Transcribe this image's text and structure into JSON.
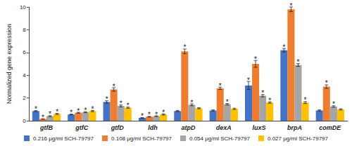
{
  "chart_data": {
    "type": "bar",
    "y_label": "Normalized gene expression",
    "categories": [
      "gtfB",
      "gtfC",
      "gtfD",
      "ldh",
      "atpD",
      "dexA",
      "luxS",
      "brpA",
      "comDE"
    ],
    "series": [
      {
        "name": "0.216 μg/ml SCH-79797",
        "color": "#4472c4",
        "values": [
          0.85,
          0.55,
          1.65,
          0.25,
          0.85,
          0.9,
          3.1,
          6.2,
          0.9
        ],
        "errors": [
          0.05,
          0.04,
          0.1,
          0.03,
          0.05,
          0.05,
          0.35,
          0.15,
          0.05
        ],
        "significance": [
          "*",
          "*",
          "*",
          "*",
          null,
          null,
          "*",
          "*",
          null
        ]
      },
      {
        "name": "0.108 μg/ml SCH-79797",
        "color": "#ed7d31",
        "values": [
          0.15,
          0.7,
          2.75,
          0.35,
          6.1,
          2.85,
          5.0,
          9.8,
          3.0
        ],
        "errors": [
          0.02,
          0.04,
          0.15,
          0.03,
          0.2,
          0.1,
          0.3,
          0.2,
          0.15
        ],
        "significance": [
          "*",
          "*",
          "*",
          "*",
          "*",
          "*",
          "*",
          "*",
          "*"
        ]
      },
      {
        "name": "0.054 μg/ml SCH-79797",
        "color": "#a5a5a5",
        "values": [
          0.4,
          0.75,
          1.3,
          0.4,
          1.4,
          1.45,
          2.2,
          4.9,
          1.25
        ],
        "errors": [
          0.04,
          0.04,
          0.08,
          0.03,
          0.08,
          0.06,
          0.1,
          0.12,
          0.06
        ],
        "significance": [
          "*",
          "*",
          "*",
          "*",
          "*",
          "*",
          "*",
          "*",
          "*"
        ]
      },
      {
        "name": "0.027 μg/ml SCH-79797",
        "color": "#ffc000",
        "values": [
          0.6,
          0.85,
          1.15,
          0.55,
          1.1,
          1.05,
          1.6,
          1.6,
          1.0
        ],
        "errors": [
          0.05,
          0.05,
          0.06,
          0.05,
          0.05,
          0.05,
          0.06,
          0.08,
          0.05
        ],
        "significance": [
          "*",
          "*",
          "*",
          "*",
          null,
          null,
          "*",
          "*",
          null
        ]
      }
    ],
    "ylim": [
      0,
      10
    ],
    "yticks": [
      0,
      2,
      4,
      6,
      8,
      10
    ],
    "grid": false,
    "legend": "bottom"
  }
}
